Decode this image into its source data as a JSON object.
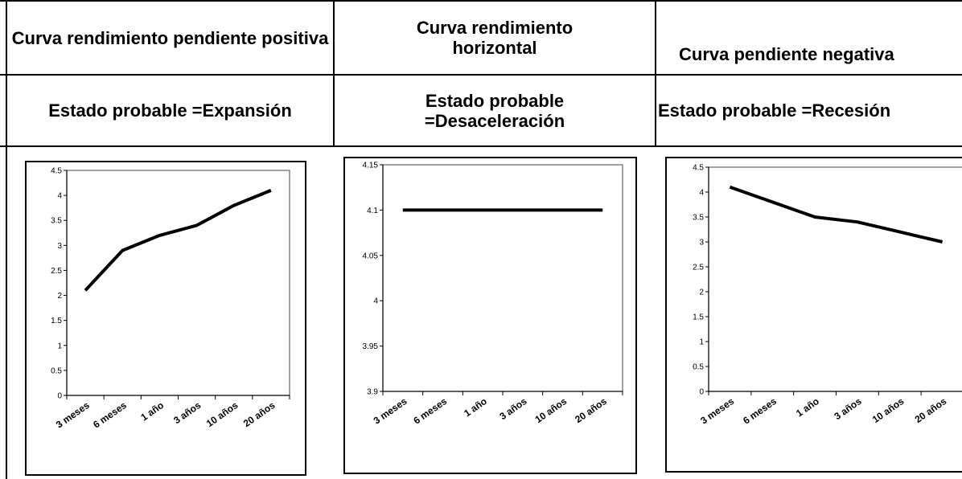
{
  "columns": [
    {
      "title": "Curva rendimiento pendiente positiva",
      "state": "Estado probable =Expansión"
    },
    {
      "title": "Curva rendimiento horizontal",
      "state": "Estado probable =Desaceleración"
    },
    {
      "title": "Curva pendiente negativa",
      "state": "Estado probable =Recesión"
    }
  ],
  "chart_data": [
    {
      "type": "line",
      "categories": [
        "3 meses",
        "6 meses",
        "1 año",
        "3 años",
        "10 años",
        "20 años"
      ],
      "values": [
        2.1,
        2.9,
        3.2,
        3.4,
        3.8,
        4.1
      ],
      "ylim": [
        0,
        4.5
      ],
      "yticks": [
        "0",
        "0.5",
        "1",
        "1.5",
        "2",
        "2.5",
        "3",
        "3.5",
        "4",
        "4.5"
      ],
      "line_color": "#000000"
    },
    {
      "type": "line",
      "categories": [
        "3 meses",
        "6 meses",
        "1 año",
        "3 años",
        "10 años",
        "20 años"
      ],
      "values": [
        4.1,
        4.1,
        4.1,
        4.1,
        4.1,
        4.1
      ],
      "ylim": [
        3.9,
        4.15
      ],
      "yticks": [
        "3.9",
        "3.95",
        "4",
        "4.05",
        "4.1",
        "4.15"
      ],
      "line_color": "#000000"
    },
    {
      "type": "line",
      "categories": [
        "3 meses",
        "6 meses",
        "1 año",
        "3 años",
        "10 años",
        "20 años"
      ],
      "values": [
        4.1,
        3.8,
        3.5,
        3.4,
        3.2,
        3.0
      ],
      "ylim": [
        0,
        4.5
      ],
      "yticks": [
        "0",
        "0.5",
        "1",
        "1.5",
        "2",
        "2.5",
        "3",
        "3.5",
        "4",
        "4.5"
      ],
      "line_color": "#000000"
    }
  ]
}
